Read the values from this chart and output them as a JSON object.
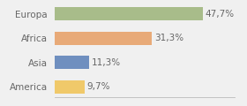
{
  "categories": [
    "Europa",
    "Africa",
    "Asia",
    "America"
  ],
  "values": [
    47.7,
    31.3,
    11.3,
    9.7
  ],
  "labels": [
    "47,7%",
    "31,3%",
    "11,3%",
    "9,7%"
  ],
  "bar_colors": [
    "#a8bc8a",
    "#e8aa78",
    "#6f8fbf",
    "#f0c96a"
  ],
  "background_color": "#f0f0f0",
  "xlim": [
    0,
    58
  ],
  "bar_height": 0.55,
  "ylabel_fontsize": 7.5,
  "label_fontsize": 7.5,
  "text_color": "#666666"
}
